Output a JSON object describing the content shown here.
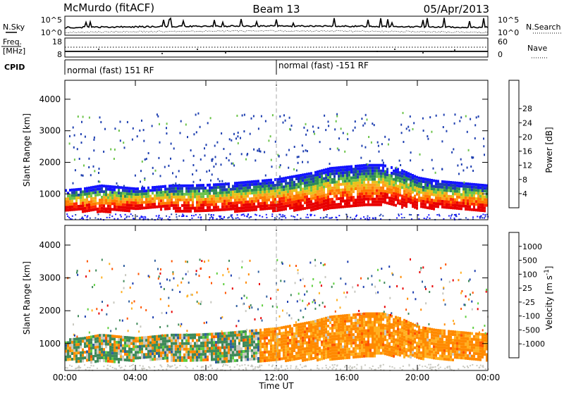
{
  "header": {
    "station": "McMurdo (fitACF)",
    "beam": "Beam 13",
    "date": "05/Apr/2013"
  },
  "summary_panels": {
    "nsky_label": "N.Sky",
    "nsearch_label": "N.Search",
    "noise_ticks": [
      "10^5",
      "10^0"
    ],
    "freq_label_line1": "Freq.",
    "freq_label_line2": "[MHz]",
    "freq_ticks": [
      "18",
      "8"
    ],
    "nave_label": "Nave",
    "nave_ticks": [
      "60",
      "0"
    ],
    "cpid_label": "CPID",
    "cpid_segments": [
      {
        "text": "normal (fast) 151 RF",
        "start_hour": 0
      },
      {
        "text": "normal (fast) -151 RF",
        "start_hour": 12
      }
    ]
  },
  "chart_data": [
    {
      "type": "heatmap",
      "title": "Power",
      "xlabel": "Time UT",
      "ylabel": "Slant Range [km]",
      "x_range_hours": [
        0,
        24
      ],
      "x_ticks": [
        "00:00",
        "04:00",
        "08:00",
        "12:00",
        "16:00",
        "20:00",
        "00:00"
      ],
      "y_range_km": [
        180,
        4600
      ],
      "y_ticks": [
        1000,
        2000,
        3000,
        4000
      ],
      "colorbar_label": "Power [dB]",
      "colorbar_ticks": [
        "4",
        "8",
        "12",
        "16",
        "20",
        "24",
        "28"
      ],
      "colorbar_colors": [
        "#1414ff",
        "#1e3fb0",
        "#2e8b57",
        "#6dc44a",
        "#e8c21c",
        "#ffa020",
        "#ff7a00",
        "#ff2a00",
        "#e80000"
      ],
      "backscatter_band_km": [
        [
          0,
          500,
          1150
        ],
        [
          1,
          480,
          1200
        ],
        [
          2,
          460,
          1300
        ],
        [
          3,
          470,
          1250
        ],
        [
          4,
          520,
          1200
        ],
        [
          5,
          560,
          1250
        ],
        [
          6,
          500,
          1300
        ],
        [
          7,
          470,
          1300
        ],
        [
          8,
          470,
          1320
        ],
        [
          9,
          480,
          1350
        ],
        [
          10,
          490,
          1400
        ],
        [
          11,
          500,
          1450
        ],
        [
          12,
          500,
          1500
        ],
        [
          13,
          520,
          1600
        ],
        [
          14,
          520,
          1700
        ],
        [
          15,
          560,
          1850
        ],
        [
          16,
          600,
          1900
        ],
        [
          17,
          620,
          1950
        ],
        [
          18,
          700,
          1950
        ],
        [
          19,
          620,
          1800
        ],
        [
          20,
          580,
          1550
        ],
        [
          21,
          560,
          1450
        ],
        [
          22,
          540,
          1400
        ],
        [
          23,
          520,
          1350
        ],
        [
          24,
          500,
          1300
        ]
      ]
    },
    {
      "type": "heatmap",
      "title": "Velocity",
      "xlabel": "Time UT",
      "ylabel": "Slant Range [km]",
      "x_range_hours": [
        0,
        24
      ],
      "x_ticks": [
        "00:00",
        "04:00",
        "08:00",
        "12:00",
        "16:00",
        "20:00",
        "00:00"
      ],
      "y_range_km": [
        180,
        4600
      ],
      "y_ticks": [
        1000,
        2000,
        3000,
        4000
      ],
      "colorbar_label": "Velocity [m s^-1]",
      "colorbar_ticks": [
        "1000",
        "500",
        "100",
        "25",
        "-25",
        "-100",
        "-500",
        "-1000"
      ],
      "colorbar_colors": [
        "#1e3fb0",
        "#2f5fa0",
        "#3f8a5a",
        "#5fcf3f",
        "#c8c8c0",
        "#ffb020",
        "#ff8a00",
        "#ff5500",
        "#e80000"
      ],
      "backscatter_band_km": [
        [
          0,
          500,
          1150
        ],
        [
          1,
          480,
          1200
        ],
        [
          2,
          460,
          1300
        ],
        [
          3,
          470,
          1250
        ],
        [
          4,
          520,
          1200
        ],
        [
          5,
          560,
          1250
        ],
        [
          6,
          500,
          1300
        ],
        [
          7,
          470,
          1300
        ],
        [
          8,
          470,
          1320
        ],
        [
          9,
          480,
          1350
        ],
        [
          10,
          490,
          1400
        ],
        [
          11,
          500,
          1450
        ],
        [
          12,
          500,
          1500
        ],
        [
          13,
          520,
          1600
        ],
        [
          14,
          520,
          1700
        ],
        [
          15,
          560,
          1850
        ],
        [
          16,
          600,
          1900
        ],
        [
          17,
          620,
          1950
        ],
        [
          18,
          700,
          1950
        ],
        [
          19,
          620,
          1800
        ],
        [
          20,
          580,
          1550
        ],
        [
          21,
          560,
          1450
        ],
        [
          22,
          540,
          1400
        ],
        [
          23,
          520,
          1350
        ],
        [
          24,
          500,
          1300
        ]
      ]
    }
  ]
}
